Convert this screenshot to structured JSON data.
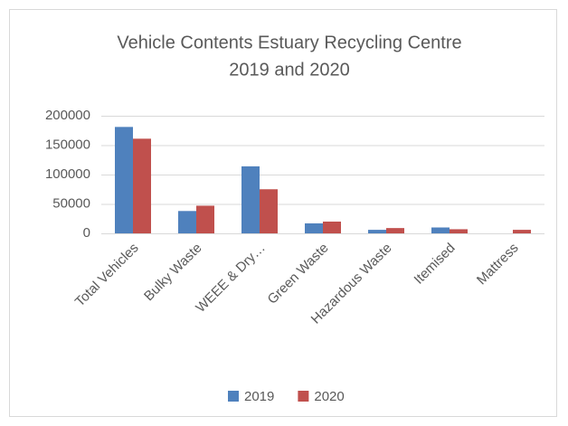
{
  "chart_data": {
    "type": "bar",
    "title": [
      "Vehicle Contents Estuary Recycling Centre",
      "2019 and 2020"
    ],
    "categories": [
      "Total Vehicles",
      "Bulky Waste",
      "WEEE & Dry…",
      "Green Waste",
      "Hazardous Waste",
      "Itemised",
      "Mattress"
    ],
    "series": [
      {
        "name": "2019",
        "color": "#4f81bd",
        "values": [
          181000,
          38000,
          114000,
          17000,
          6000,
          10000,
          0
        ]
      },
      {
        "name": "2020",
        "color": "#c0504d",
        "values": [
          161000,
          47000,
          75000,
          20000,
          9000,
          7000,
          6000
        ]
      }
    ],
    "ylim": [
      0,
      200000
    ],
    "yticks": [
      0,
      50000,
      100000,
      150000,
      200000
    ],
    "grid": true,
    "legend": "bottom"
  }
}
